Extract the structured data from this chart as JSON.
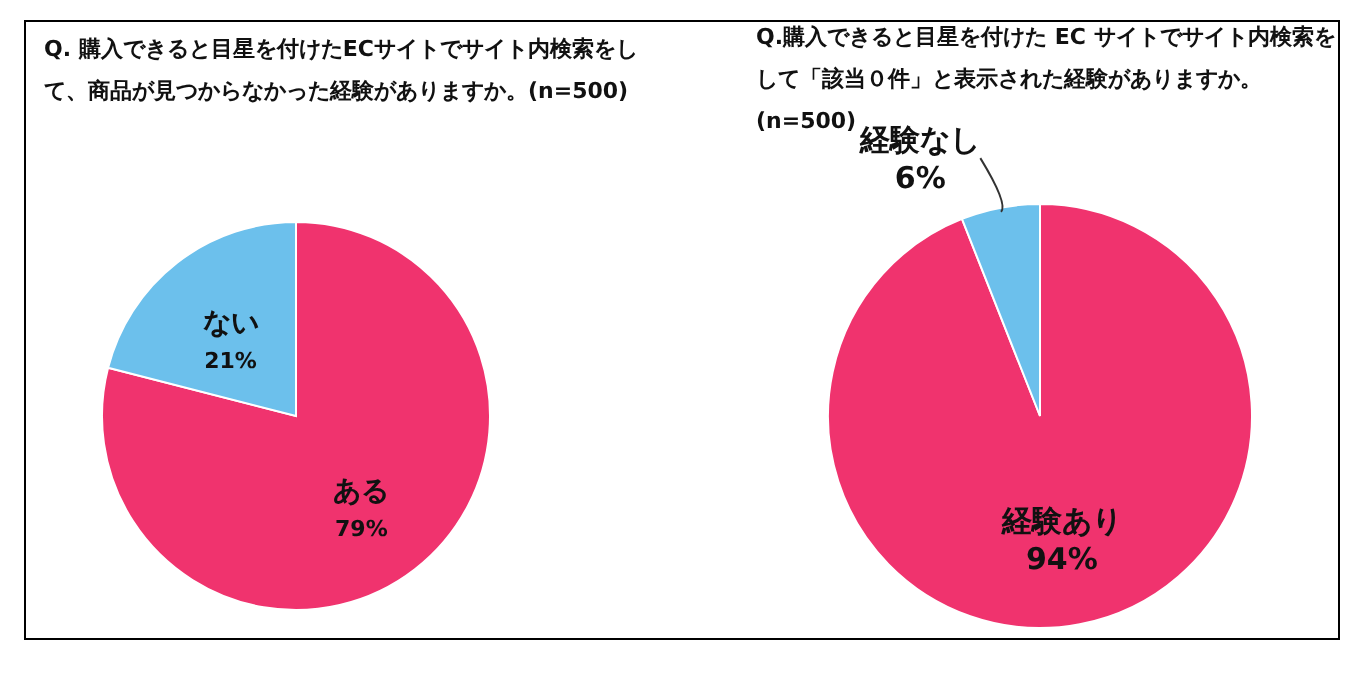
{
  "chart_data": [
    {
      "type": "pie",
      "title": "Q. 購入できると目星を付けたECサイトでサイト内検索をして、商品が見つからなかった経験がありますか。(n=500)",
      "categories": [
        "ある",
        "ない"
      ],
      "values": [
        79,
        21
      ],
      "colors": [
        "#f0336e",
        "#6cc0ec"
      ],
      "value_labels": [
        "79%",
        "21%"
      ]
    },
    {
      "type": "pie",
      "title": "Q.購入できると目星を付けた EC サイトでサイト内検索をして「該当０件」と表示された経験がありますか。(n=500)",
      "categories": [
        "経験あり",
        "経験なし"
      ],
      "values": [
        94,
        6
      ],
      "colors": [
        "#f0336e",
        "#6cc0ec"
      ],
      "value_labels": [
        "94%",
        "6%"
      ]
    }
  ]
}
